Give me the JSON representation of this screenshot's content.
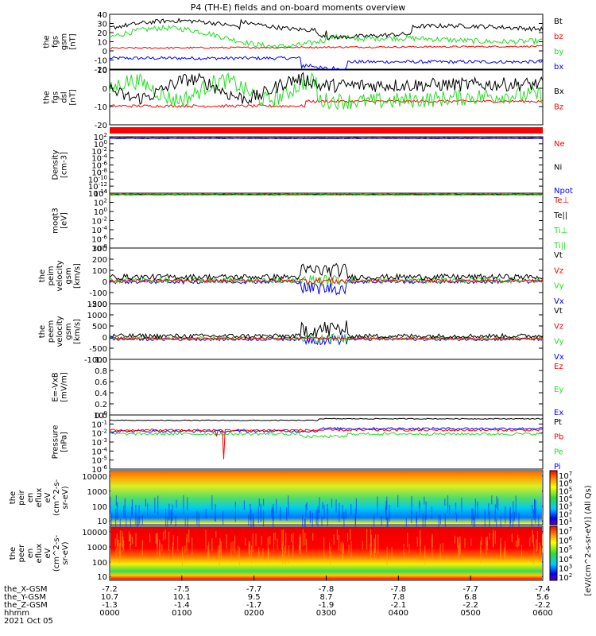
{
  "title": "P4 (TH-E) fields and on-board moments overview",
  "colors": {
    "black": "#000000",
    "red": "#ff0000",
    "green": "#22dd22",
    "blue": "#0000ff"
  },
  "chart_data": [
    {
      "type": "line",
      "ylabel": [
        "the",
        "fgs",
        "gsm",
        "[nT]"
      ],
      "yticks": [
        "40",
        "30",
        "20",
        "10",
        "0",
        "-10",
        "-20"
      ],
      "series": [
        {
          "name": "Bt",
          "color": "black"
        },
        {
          "name": "bz",
          "color": "red"
        },
        {
          "name": "by",
          "color": "green"
        },
        {
          "name": "bx",
          "color": "blue"
        }
      ]
    },
    {
      "type": "line",
      "ylabel": [
        "the",
        "fgs",
        "dsl",
        "[nT]"
      ],
      "yticks": [
        "10",
        "0",
        "-10",
        "-20"
      ],
      "series": [
        {
          "name": "Bx",
          "color": "black"
        },
        {
          "name": "Bz",
          "color": "red"
        }
      ]
    },
    {
      "type": "line",
      "ylabel": [
        "Density",
        "[cm-3]"
      ],
      "yticks": [
        "10^2",
        "10^0",
        "10^-2",
        "10^-4",
        "10^-6",
        "10^-8",
        "10^-10",
        "10^-12",
        "10^-14"
      ],
      "series": [
        {
          "name": "Ne",
          "color": "red"
        },
        {
          "name": "Ni",
          "color": "black"
        },
        {
          "name": "Npot",
          "color": "blue"
        }
      ]
    },
    {
      "type": "line",
      "ylabel": [
        "moqt3",
        "[eV]"
      ],
      "yticks": [
        "10^4",
        "10^2",
        "10^0",
        "10^-2",
        "10^-4",
        "10^-6",
        "10^-8"
      ],
      "series": [
        {
          "name": "Te⊥",
          "color": "red"
        },
        {
          "name": "Te||",
          "color": "black"
        },
        {
          "name": "Ti⊥",
          "color": "green"
        },
        {
          "name": "Ti||",
          "color": "green"
        }
      ]
    },
    {
      "type": "line",
      "ylabel": [
        "the",
        "peim",
        "velocity",
        "gsm",
        "[km/s]"
      ],
      "yticks": [
        "300",
        "200",
        "100",
        "0",
        "-100",
        "-200"
      ],
      "series": [
        {
          "name": "Vt",
          "color": "black"
        },
        {
          "name": "Vz",
          "color": "red"
        },
        {
          "name": "Vy",
          "color": "green"
        },
        {
          "name": "Vx",
          "color": "blue"
        }
      ]
    },
    {
      "type": "line",
      "ylabel": [
        "the",
        "peem",
        "velocity",
        "gsm",
        "[km/s]"
      ],
      "yticks": [
        "1500",
        "1000",
        "500",
        "0",
        "-500",
        "-1000"
      ],
      "series": [
        {
          "name": "Vt",
          "color": "black"
        },
        {
          "name": "Vz",
          "color": "red"
        },
        {
          "name": "Vy",
          "color": "green"
        },
        {
          "name": "Vx",
          "color": "blue"
        }
      ]
    },
    {
      "type": "line",
      "ylabel": [
        "E=-VxB",
        "[mV/m]"
      ],
      "yticks": [
        "1.0",
        "0.8",
        "0.6",
        "0.4",
        "0.2",
        "0.0"
      ],
      "series": [
        {
          "name": "Ez",
          "color": "red"
        },
        {
          "name": "Ey",
          "color": "green"
        },
        {
          "name": "Ex",
          "color": "blue"
        }
      ]
    },
    {
      "type": "line",
      "ylabel": [
        "Pressure",
        "[nPa]"
      ],
      "yticks": [
        "10^0",
        "10^-1",
        "10^-2",
        "10^-3",
        "10^-4",
        "10^-5",
        "10^-6"
      ],
      "series": [
        {
          "name": "Pt",
          "color": "black"
        },
        {
          "name": "Pb",
          "color": "red"
        },
        {
          "name": "Pe",
          "color": "green"
        },
        {
          "name": "Pi",
          "color": "blue"
        }
      ]
    },
    {
      "type": "heatmap",
      "ylabel": [
        "the",
        "peir",
        "en",
        "eflux",
        "eV",
        "(cm^2-s-",
        "sr-eV)"
      ],
      "yticks": [
        "10000",
        "1000",
        "100",
        "10"
      ],
      "cbticks": [
        "10^7",
        "10^6",
        "10^5",
        "10^4",
        "10^3",
        "10^2",
        "10^1"
      ]
    },
    {
      "type": "heatmap",
      "ylabel": [
        "the",
        "peer",
        "en",
        "eflux",
        "eV",
        "(cm^2-s-",
        "sr-eV)"
      ],
      "yticks": [
        "10000",
        "1000",
        "100",
        "10"
      ],
      "cbticks": [
        "10^7",
        "10^6",
        "10^5",
        "10^4",
        "10^3",
        "10^2"
      ]
    }
  ],
  "colorbar_label": "[eV/(cm^2-s-sr-eV)] (All Qs)",
  "ephemeris": {
    "row_labels": [
      "the_X-GSM",
      "the_Y-GSM",
      "the_Z-GSM",
      "hhmm"
    ],
    "columns": [
      [
        "-7.2",
        "10.7",
        "-1.3",
        "0000"
      ],
      [
        "-7.5",
        "10.1",
        "-1.4",
        "0100"
      ],
      [
        "-7.7",
        "9.5",
        "-1.7",
        "0200"
      ],
      [
        "-7.8",
        "8.7",
        "-1.9",
        "0300"
      ],
      [
        "-7.8",
        "7.8",
        "-2.1",
        "0400"
      ],
      [
        "-7.7",
        "6.8",
        "-2.2",
        "0500"
      ],
      [
        "-7.4",
        "5.6",
        "-2.2",
        "0600"
      ]
    ],
    "date": "2021 Oct 05"
  }
}
